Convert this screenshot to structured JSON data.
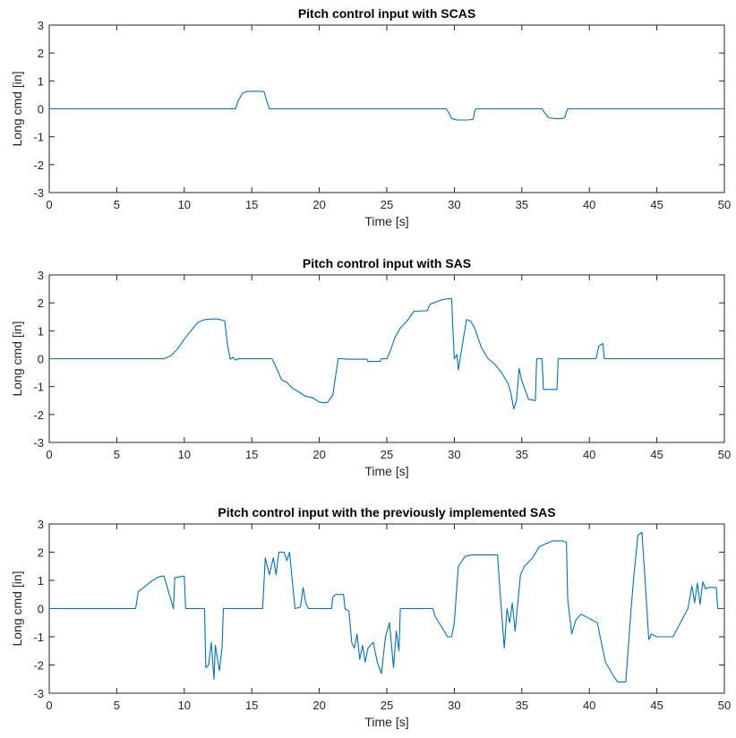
{
  "chart_data": [
    {
      "type": "line",
      "title": "Pitch control input with SCAS",
      "xlabel": "Time [s]",
      "ylabel": "Long cmd [in]",
      "xlim": [
        0,
        50
      ],
      "ylim": [
        -3,
        3
      ],
      "xticks": [
        0,
        5,
        10,
        15,
        20,
        25,
        30,
        35,
        40,
        45,
        50
      ],
      "yticks": [
        -3,
        -2,
        -1,
        0,
        1,
        2,
        3
      ],
      "grid": false,
      "line_color": "#0072BD",
      "series": [
        {
          "x": [
            0,
            13.8,
            14.0,
            14.3,
            14.6,
            15.0,
            15.5,
            15.9,
            16.1,
            16.3,
            29.4,
            29.6,
            29.8,
            30.2,
            31.0,
            31.4,
            31.5,
            31.6,
            36.5,
            36.7,
            37.0,
            37.5,
            38.0,
            38.2,
            38.3,
            38.4,
            50
          ],
          "y": [
            0,
            0,
            0.3,
            0.55,
            0.62,
            0.63,
            0.63,
            0.62,
            0.3,
            0,
            0,
            -0.15,
            -0.35,
            -0.4,
            -0.4,
            -0.38,
            -0.1,
            0,
            0,
            -0.15,
            -0.32,
            -0.35,
            -0.35,
            -0.3,
            -0.1,
            0,
            0
          ]
        }
      ]
    },
    {
      "type": "line",
      "title": "Pitch control input with SAS",
      "xlabel": "Time [s]",
      "ylabel": "Long cmd [in]",
      "xlim": [
        0,
        50
      ],
      "ylim": [
        -3,
        3
      ],
      "xticks": [
        0,
        5,
        10,
        15,
        20,
        25,
        30,
        35,
        40,
        45,
        50
      ],
      "yticks": [
        -3,
        -2,
        -1,
        0,
        1,
        2,
        3
      ],
      "grid": false,
      "line_color": "#0072BD",
      "series": [
        {
          "x": [
            0,
            8.5,
            9.0,
            9.5,
            10.0,
            10.5,
            11.0,
            11.5,
            12.0,
            12.5,
            13.0,
            13.2,
            13.4,
            13.6,
            13.8,
            14.0,
            16.5,
            16.8,
            17.2,
            17.6,
            18.0,
            18.5,
            19.0,
            19.5,
            20.0,
            20.3,
            20.6,
            21.0,
            21.4,
            21.7,
            22.0,
            23.5,
            23.6,
            24.5,
            24.6,
            25.0,
            25.2,
            25.6,
            26.0,
            26.5,
            27.0,
            28.0,
            28.2,
            29.0,
            29.5,
            29.8,
            29.9,
            30.0,
            30.2,
            30.3,
            30.6,
            30.9,
            31.2,
            31.5,
            32.0,
            32.5,
            33.0,
            33.5,
            34.0,
            34.2,
            34.4,
            34.6,
            34.8,
            35.0,
            35.5,
            36.0,
            36.1,
            36.5,
            36.6,
            37.6,
            37.7,
            40.5,
            40.7,
            41.0,
            41.1,
            50
          ],
          "y": [
            0,
            0,
            0.1,
            0.35,
            0.7,
            1.0,
            1.3,
            1.4,
            1.42,
            1.42,
            1.35,
            0.5,
            -0.02,
            0.05,
            -0.05,
            0,
            0,
            -0.3,
            -0.75,
            -0.85,
            -1.05,
            -1.2,
            -1.35,
            -1.4,
            -1.55,
            -1.58,
            -1.57,
            -1.3,
            0,
            0,
            -0.02,
            -0.02,
            -0.1,
            -0.1,
            0,
            0,
            0.2,
            0.75,
            1.1,
            1.35,
            1.7,
            1.72,
            1.95,
            2.1,
            2.15,
            2.15,
            1.0,
            0,
            0.15,
            -0.4,
            0.5,
            1.4,
            1.35,
            1.1,
            0.4,
            0,
            -0.2,
            -0.5,
            -0.9,
            -1.25,
            -1.8,
            -1.5,
            -0.35,
            -0.8,
            -1.45,
            -1.5,
            0,
            0,
            -1.1,
            -1.1,
            0,
            0,
            0.45,
            0.55,
            0,
            0
          ]
        }
      ]
    },
    {
      "type": "line",
      "title": "Pitch control input with the previously implemented SAS",
      "xlabel": "Time [s]",
      "ylabel": "Long cmd [in]",
      "xlim": [
        0,
        50
      ],
      "ylim": [
        -3,
        3
      ],
      "xticks": [
        0,
        5,
        10,
        15,
        20,
        25,
        30,
        35,
        40,
        45,
        50
      ],
      "yticks": [
        -3,
        -2,
        -1,
        0,
        1,
        2,
        3
      ],
      "grid": false,
      "line_color": "#0072BD",
      "series": [
        {
          "x": [
            0,
            6.4,
            6.6,
            7.0,
            7.5,
            8.0,
            8.3,
            8.5,
            9.2,
            9.3,
            10.0,
            10.1,
            11.5,
            11.6,
            11.8,
            12.0,
            12.2,
            12.3,
            12.6,
            12.8,
            12.9,
            15.8,
            16.0,
            16.3,
            16.6,
            16.8,
            17.0,
            17.4,
            17.6,
            17.8,
            18.0,
            18.2,
            18.6,
            18.8,
            19.0,
            19.2,
            20.9,
            21.0,
            21.2,
            21.8,
            21.9,
            22.2,
            22.4,
            22.6,
            22.8,
            23.0,
            23.2,
            23.4,
            23.6,
            24.0,
            24.3,
            24.6,
            24.9,
            25.2,
            25.5,
            25.7,
            25.9,
            26.0,
            26.2,
            26.5,
            28.4,
            28.6,
            29.0,
            29.5,
            29.8,
            30.0,
            30.3,
            30.8,
            31.3,
            31.6,
            33.2,
            33.4,
            33.7,
            33.9,
            34.1,
            34.3,
            34.5,
            34.7,
            34.9,
            35.2,
            35.8,
            36.3,
            36.8,
            37.3,
            38.0,
            38.3,
            38.4,
            38.7,
            39.0,
            39.4,
            40.6,
            40.8,
            41.2,
            41.8,
            42.1,
            42.4,
            42.7,
            43.1,
            43.3,
            43.6,
            43.9,
            44.2,
            44.4,
            44.6,
            45.0,
            45.5,
            46.2,
            47.3,
            47.6,
            47.8,
            48.0,
            48.2,
            48.4,
            48.6,
            48.8,
            49.4,
            49.5,
            50
          ],
          "y": [
            0,
            0,
            0.6,
            0.75,
            0.95,
            1.1,
            1.15,
            1.15,
            0,
            1.1,
            1.15,
            0,
            0,
            -2.1,
            -2.0,
            -1.2,
            -2.5,
            -1.3,
            -2.2,
            -1.4,
            0,
            0,
            1.8,
            1.2,
            1.8,
            1.2,
            2.0,
            2.0,
            1.7,
            2.0,
            1.0,
            0,
            0.05,
            0.75,
            0.2,
            0,
            0,
            0.4,
            0.5,
            0.5,
            0,
            -0.1,
            -1.2,
            -1.4,
            -0.9,
            -1.8,
            -1.3,
            -1.9,
            -1.4,
            -1.2,
            -1.9,
            -2.3,
            -1.0,
            -0.5,
            -2.1,
            -0.8,
            -1.5,
            0,
            0,
            0,
            0,
            -0.3,
            -0.6,
            -1.0,
            -1.0,
            -0.5,
            1.5,
            1.85,
            1.9,
            1.9,
            1.9,
            0.5,
            -1.4,
            0,
            -0.5,
            0.2,
            -0.8,
            0.2,
            1.2,
            1.5,
            1.8,
            2.2,
            2.3,
            2.4,
            2.4,
            2.35,
            0.3,
            -0.9,
            -0.4,
            -0.2,
            -0.5,
            -1.0,
            -1.9,
            -2.4,
            -2.6,
            -2.6,
            -2.6,
            0,
            1.2,
            2.6,
            2.7,
            0.5,
            -1.1,
            -0.9,
            -1.0,
            -1.0,
            -1.0,
            0,
            0.8,
            0.2,
            0.9,
            0.15,
            0.95,
            0.7,
            0.75,
            0.75,
            0,
            0
          ]
        }
      ]
    }
  ]
}
